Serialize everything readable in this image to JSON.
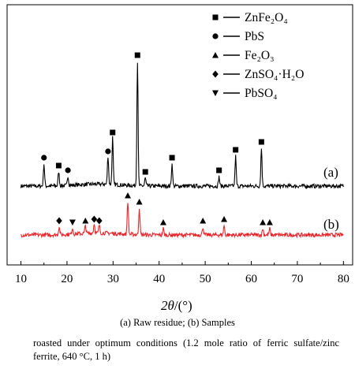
{
  "chart_data": {
    "type": "line",
    "title": "",
    "xlabel_main": "2θ",
    "xlabel_unit": "/(°)",
    "ylabel": "",
    "xlim": [
      7,
      82
    ],
    "x_ticks": [
      10,
      20,
      30,
      40,
      50,
      60,
      70,
      80
    ],
    "legend": [
      {
        "marker": "square",
        "label": "ZnFe₂O₄"
      },
      {
        "marker": "circle",
        "label": "PbS"
      },
      {
        "marker": "triangle",
        "label": "Fe₂O₃"
      },
      {
        "marker": "diamond",
        "label": "ZnSO₄·H₂O"
      },
      {
        "marker": "tri-down",
        "label": "PbSO₄"
      }
    ],
    "legend_position": "top-right",
    "series": [
      {
        "name": "(a)",
        "color": "#000000",
        "peaks": [
          {
            "x": 15.0,
            "h": 28,
            "phase": "PbS"
          },
          {
            "x": 18.2,
            "h": 18,
            "phase": "ZnFe2O4"
          },
          {
            "x": 20.2,
            "h": 12,
            "phase": "PbS"
          },
          {
            "x": 28.9,
            "h": 36,
            "phase": "PbS"
          },
          {
            "x": 29.9,
            "h": 60,
            "phase": "ZnFe2O4"
          },
          {
            "x": 35.3,
            "h": 158,
            "phase": "ZnFe2O4"
          },
          {
            "x": 37.0,
            "h": 10,
            "phase": "ZnFe2O4"
          },
          {
            "x": 42.8,
            "h": 28,
            "phase": "ZnFe2O4"
          },
          {
            "x": 53.0,
            "h": 12,
            "phase": "ZnFe2O4"
          },
          {
            "x": 56.6,
            "h": 38,
            "phase": "ZnFe2O4"
          },
          {
            "x": 62.2,
            "h": 48,
            "phase": "ZnFe2O4"
          }
        ]
      },
      {
        "name": "(b)",
        "color": "#e8262c",
        "peaks": [
          {
            "x": 18.3,
            "h": 10,
            "phase": "ZnSO4·H2O"
          },
          {
            "x": 21.2,
            "h": 8,
            "phase": "PbSO4"
          },
          {
            "x": 24.0,
            "h": 10,
            "phase": "Fe2O3"
          },
          {
            "x": 25.9,
            "h": 12,
            "phase": "ZnSO4·H2O"
          },
          {
            "x": 27.0,
            "h": 10,
            "phase": "ZnSO4·H2O"
          },
          {
            "x": 33.2,
            "h": 42,
            "phase": "Fe2O3"
          },
          {
            "x": 35.7,
            "h": 34,
            "phase": "Fe2O3"
          },
          {
            "x": 40.9,
            "h": 8,
            "phase": "Fe2O3"
          },
          {
            "x": 49.5,
            "h": 10,
            "phase": "Fe2O3"
          },
          {
            "x": 54.1,
            "h": 12,
            "phase": "Fe2O3"
          },
          {
            "x": 62.5,
            "h": 8,
            "phase": "Fe2O3"
          },
          {
            "x": 64.0,
            "h": 8,
            "phase": "Fe2O3"
          }
        ]
      }
    ]
  },
  "captions": {
    "line1": "(a) Raw residue; (b) Samples",
    "line2": "roasted under optimum conditions (1.2 mole ratio of ferric sulfate/zinc ferrite, 640 °C, 1 h)"
  }
}
